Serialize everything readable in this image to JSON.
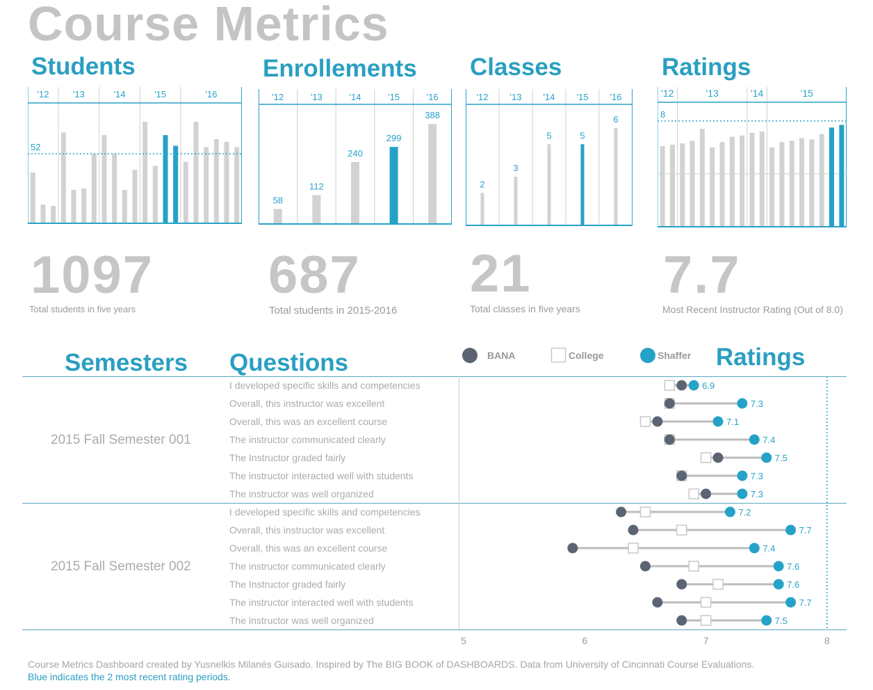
{
  "title": "Course Metrics",
  "colors": {
    "accent": "#26a2c8",
    "grey_bar": "#d2d2d2",
    "bana": "#5b6472",
    "line": "#bcbcbc"
  },
  "panels": {
    "students": {
      "title": "Students",
      "years": [
        "'12",
        "'13",
        "'14",
        "'15",
        "'16"
      ],
      "reference": 52,
      "kpi_value": "1097",
      "kpi_label": "Total students in five years"
    },
    "enrollments": {
      "title": "Enrollements",
      "kpi_value": "687",
      "kpi_label": "Total students in 2015-2016"
    },
    "classes": {
      "title": "Classes",
      "kpi_value": "21",
      "kpi_label": "Total classes in five years"
    },
    "ratings": {
      "title": "Ratings",
      "years": [
        "'12",
        "'13",
        "'14",
        "'15"
      ],
      "reference": 8,
      "gridline": 4,
      "kpi_value": "7.7",
      "kpi_label": "Most Recent Instructor Rating (Out of 8.0)"
    }
  },
  "bottom": {
    "semesters_title": "Semesters",
    "questions_title": "Questions",
    "ratings_title": "Ratings",
    "legend": [
      {
        "label": "BANA",
        "shape": "circle"
      },
      {
        "label": "College",
        "shape": "square"
      },
      {
        "label": "Shaffer",
        "shape": "circle"
      }
    ],
    "axis_ticks": [
      "5",
      "6",
      "7",
      "8"
    ]
  },
  "footer": {
    "credit": "Course Metrics Dashboard created by Yusnelkis Milanés Guisado. Inspired by The BIG BOOK of DASHBOARDS.  Data from University of Cincinnati Course Evaluations.",
    "note": "Blue indicates the 2 most recent rating periods."
  },
  "chart_data": [
    {
      "type": "bar",
      "title": "Students",
      "groups": [
        {
          "label": "'12",
          "values": [
            38,
            14,
            13
          ]
        },
        {
          "label": "'13",
          "values": [
            68,
            25,
            26,
            52
          ]
        },
        {
          "label": "'14",
          "values": [
            66,
            52,
            25,
            40
          ]
        },
        {
          "label": "'15",
          "values": [
            76,
            43,
            66,
            58
          ]
        },
        {
          "label": "'16",
          "values": [
            46,
            76,
            57,
            63,
            61,
            57
          ]
        }
      ],
      "highlight_last_n_of_group": {
        "'15": 2
      },
      "reference": 52,
      "ylim": [
        0,
        88
      ]
    },
    {
      "type": "bar",
      "title": "Enrollements",
      "categories": [
        "'12",
        "'13",
        "'14",
        "'15",
        "'16"
      ],
      "values": [
        58,
        112,
        240,
        299,
        388
      ],
      "highlight": [
        "'15"
      ],
      "ylim": [
        0,
        410
      ]
    },
    {
      "type": "bar",
      "title": "Classes",
      "categories": [
        "'12",
        "'13",
        "'14",
        "'15",
        "'16"
      ],
      "values": [
        2,
        3,
        5,
        5,
        6
      ],
      "highlight": [
        "'15"
      ],
      "ylim": [
        0,
        6.6
      ]
    },
    {
      "type": "bar",
      "title": "Ratings",
      "groups": [
        {
          "label": "'12",
          "values": [
            6.1,
            6.2
          ]
        },
        {
          "label": "'13",
          "values": [
            6.3,
            6.5,
            7.4,
            6.0,
            6.4,
            6.8,
            6.9
          ]
        },
        {
          "label": "'14",
          "values": [
            7.1,
            7.2
          ]
        },
        {
          "label": "'15",
          "values": [
            6.0,
            6.4,
            6.5,
            6.7,
            6.6,
            7.0,
            7.5,
            7.7
          ]
        }
      ],
      "highlight_last_n_of_group": {
        "'15": 2
      },
      "reference": 8,
      "gridline": 4,
      "ylim": [
        0,
        9.2
      ]
    },
    {
      "type": "dot",
      "title": "Ratings",
      "xlim": [
        4.97,
        8
      ],
      "xticks": [
        5,
        6,
        7,
        8
      ],
      "reference_line": 8,
      "series": [
        "BANA",
        "College",
        "Shaffer"
      ],
      "semesters": [
        {
          "name": "2015 Fall Semester 001",
          "rows": [
            {
              "question": "I developed specific skills and competencies",
              "bana": 6.8,
              "college": 6.7,
              "shaffer": 6.9,
              "label": "6.9"
            },
            {
              "question": "Overall, this instructor was excellent",
              "bana": 6.7,
              "college": 6.7,
              "shaffer": 7.3,
              "label": "7.3"
            },
            {
              "question": "Overall, this was an excellent course",
              "bana": 6.6,
              "college": 6.5,
              "shaffer": 7.1,
              "label": "7.1"
            },
            {
              "question": "The instructor communicated clearly",
              "bana": 6.7,
              "college": 6.7,
              "shaffer": 7.4,
              "label": "7.4"
            },
            {
              "question": "The Instructor graded fairly",
              "bana": 7.1,
              "college": 7.0,
              "shaffer": 7.5,
              "label": "7.5"
            },
            {
              "question": "The instructor interacted well with students",
              "bana": 6.8,
              "college": 6.8,
              "shaffer": 7.3,
              "label": "7.3"
            },
            {
              "question": "The instructor was well organized",
              "bana": 7.0,
              "college": 6.9,
              "shaffer": 7.3,
              "label": "7.3"
            }
          ]
        },
        {
          "name": "2015 Fall Semester 002",
          "rows": [
            {
              "question": "I developed specific skills and competencies",
              "bana": 6.3,
              "college": 6.5,
              "shaffer": 7.2,
              "label": "7.2"
            },
            {
              "question": "Overall, this instructor was excellent",
              "bana": 6.4,
              "college": 6.8,
              "shaffer": 7.7,
              "label": "7.7"
            },
            {
              "question": "Overall, this was an excellent course",
              "bana": 5.9,
              "college": 6.4,
              "shaffer": 7.4,
              "label": "7.4"
            },
            {
              "question": "The instructor communicated clearly",
              "bana": 6.5,
              "college": 6.9,
              "shaffer": 7.6,
              "label": "7.6"
            },
            {
              "question": "The Instructor graded fairly",
              "bana": 6.8,
              "college": 7.1,
              "shaffer": 7.6,
              "label": "7.6"
            },
            {
              "question": "The instructor interacted well with students",
              "bana": 6.6,
              "college": 7.0,
              "shaffer": 7.7,
              "label": "7.7"
            },
            {
              "question": "The instructor was well organized",
              "bana": 6.8,
              "college": 7.0,
              "shaffer": 7.5,
              "label": "7.5"
            }
          ]
        }
      ]
    }
  ]
}
